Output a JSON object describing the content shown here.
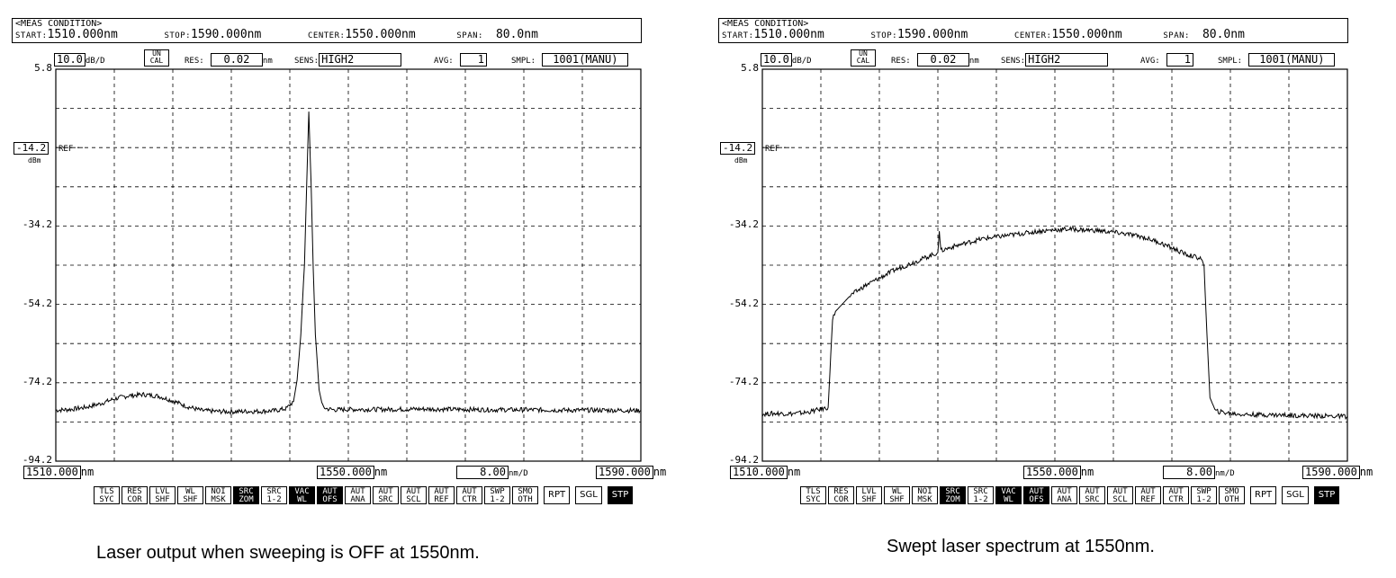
{
  "panels": [
    {
      "meas_condition": "<MEAS CONDITION>",
      "start_label": "START:",
      "start": "1510.000nm",
      "stop_label": "STOP:",
      "stop": "1590.000nm",
      "center_label": "CENTER:",
      "center": "1550.000nm",
      "span_label": "SPAN:",
      "span": "80.0nm",
      "scale": "10.0",
      "scale_unit": "dB/D",
      "uncal_1": "UN",
      "uncal_2": "CAL",
      "res_label": "RES:",
      "res": "0.02",
      "res_unit": "nm",
      "sens_label": "SENS:",
      "sens": "HIGH2",
      "avg_label": "AVG:",
      "avg": "1",
      "smpl_label": "SMPL:",
      "smpl": "1001(MANU)",
      "ref_level": "-14.2",
      "ref_unit": "dBm",
      "ref_text": "REF",
      "x_left": "1510.000",
      "x_center": "1550.000",
      "x_div": "8.00",
      "x_right": "1590.000",
      "x_unit": "nm",
      "x_div_unit": "nm/D",
      "caption": "Laser output when sweeping is OFF at 1550nm."
    },
    {
      "meas_condition": "<MEAS CONDITION>",
      "start_label": "START:",
      "start": "1510.000nm",
      "stop_label": "STOP:",
      "stop": "1590.000nm",
      "center_label": "CENTER:",
      "center": "1550.000nm",
      "span_label": "SPAN:",
      "span": "80.0nm",
      "scale": "10.0",
      "scale_unit": "dB/D",
      "uncal_1": "UN",
      "uncal_2": "CAL",
      "res_label": "RES:",
      "res": "0.02",
      "res_unit": "nm",
      "sens_label": "SENS:",
      "sens": "HIGH2",
      "avg_label": "AVG:",
      "avg": "1",
      "smpl_label": "SMPL:",
      "smpl": "1001(MANU)",
      "ref_level": "-14.2",
      "ref_unit": "dBm",
      "ref_text": "REF",
      "x_left": "1510.000",
      "x_center": "1550.000",
      "x_div": "8.00",
      "x_right": "1590.000",
      "x_unit": "nm",
      "x_div_unit": "nm/D",
      "caption": "Swept laser spectrum at 1550nm."
    }
  ],
  "softkeys": [
    {
      "l1": "TLS",
      "l2": "SYC",
      "on": false
    },
    {
      "l1": "RES",
      "l2": "COR",
      "on": false
    },
    {
      "l1": "LVL",
      "l2": "SHF",
      "on": false
    },
    {
      "l1": "WL",
      "l2": "SHF",
      "on": false
    },
    {
      "l1": "NOI",
      "l2": "MSK",
      "on": false
    },
    {
      "l1": "SRC",
      "l2": "ZOM",
      "on": true
    },
    {
      "l1": "SRC",
      "l2": "1-2",
      "on": false
    },
    {
      "l1": "VAC",
      "l2": "WL",
      "on": true
    },
    {
      "l1": "AUT",
      "l2": "OFS",
      "on": true
    },
    {
      "l1": "AUT",
      "l2": "ANA",
      "on": false
    },
    {
      "l1": "AUT",
      "l2": "SRC",
      "on": false
    },
    {
      "l1": "AUT",
      "l2": "SCL",
      "on": false
    },
    {
      "l1": "AUT",
      "l2": "REF",
      "on": false
    },
    {
      "l1": "AUT",
      "l2": "CTR",
      "on": false
    },
    {
      "l1": "SWP",
      "l2": "1-2",
      "on": false
    },
    {
      "l1": "SMO",
      "l2": "OTH",
      "on": false
    }
  ],
  "softkeys2": [
    {
      "label": "RPT",
      "on": false
    },
    {
      "label": "SGL",
      "on": false
    },
    {
      "label": "STP",
      "on": true
    }
  ],
  "chart_data": [
    {
      "type": "line",
      "xlim": [
        1510,
        1590
      ],
      "ylim": [
        -94.2,
        5.8
      ],
      "y_ticks": [
        "5.8",
        "-34.2",
        "-54.2",
        "-74.2",
        "-94.2"
      ],
      "y_tick_values": [
        5.8,
        -34.2,
        -54.2,
        -74.2,
        -94.2
      ],
      "x_divisions": 10,
      "y_divisions": 10,
      "grid": true,
      "x": [
        1510,
        1512,
        1514,
        1516,
        1518,
        1520,
        1522,
        1524,
        1526,
        1528,
        1530,
        1532,
        1534,
        1536,
        1538,
        1540,
        1541.5,
        1542.5,
        1543,
        1543.5,
        1544,
        1544.3,
        1544.6,
        1544.9,
        1545.2,
        1545.5,
        1546,
        1546.5,
        1547,
        1548,
        1550,
        1555,
        1560,
        1565,
        1570,
        1575,
        1580,
        1585,
        1590
      ],
      "y": [
        -81.2,
        -81.0,
        -80.5,
        -79.6,
        -78.3,
        -77.5,
        -77.2,
        -77.6,
        -78.8,
        -80.3,
        -81.3,
        -81.5,
        -81.6,
        -81.5,
        -81.5,
        -81.3,
        -80.8,
        -79.0,
        -73.5,
        -62.0,
        -44.0,
        -24.0,
        -5.0,
        -23.0,
        -45.0,
        -62.0,
        -76.0,
        -80.3,
        -80.8,
        -81.1,
        -81.0,
        -81.0,
        -80.9,
        -81.0,
        -81.1,
        -81.1,
        -81.2,
        -81.2,
        -81.3
      ]
    },
    {
      "type": "line",
      "xlim": [
        1510,
        1590
      ],
      "ylim": [
        -94.2,
        5.8
      ],
      "y_ticks": [
        "5.8",
        "-34.2",
        "-54.2",
        "-74.2",
        "-94.2"
      ],
      "y_tick_values": [
        5.8,
        -34.2,
        -54.2,
        -74.2,
        -94.2
      ],
      "x_divisions": 10,
      "y_divisions": 10,
      "grid": true,
      "x": [
        1510,
        1512,
        1514,
        1516,
        1519,
        1519.6,
        1520,
        1522,
        1524,
        1526,
        1528,
        1530,
        1532,
        1534,
        1534.2,
        1534.4,
        1536,
        1538,
        1540,
        1542,
        1544,
        1546,
        1548,
        1550,
        1552,
        1554,
        1556,
        1558,
        1560,
        1562,
        1564,
        1566,
        1568,
        1570,
        1570.4,
        1570.8,
        1571.2,
        1572,
        1574,
        1576,
        1580,
        1585,
        1590
      ],
      "y": [
        -82.2,
        -82.0,
        -82.1,
        -81.8,
        -80.5,
        -58.0,
        -56.0,
        -52.0,
        -49.5,
        -47.5,
        -45.5,
        -44.0,
        -42.5,
        -41.0,
        -35.5,
        -40.5,
        -39.5,
        -38.5,
        -37.5,
        -37.0,
        -36.5,
        -36.0,
        -35.5,
        -35.2,
        -35.0,
        -35.2,
        -35.4,
        -35.8,
        -36.3,
        -37.0,
        -38.2,
        -39.8,
        -41.5,
        -42.5,
        -44.5,
        -62.0,
        -78.0,
        -81.5,
        -82.0,
        -82.3,
        -82.4,
        -82.6,
        -82.8
      ]
    }
  ]
}
